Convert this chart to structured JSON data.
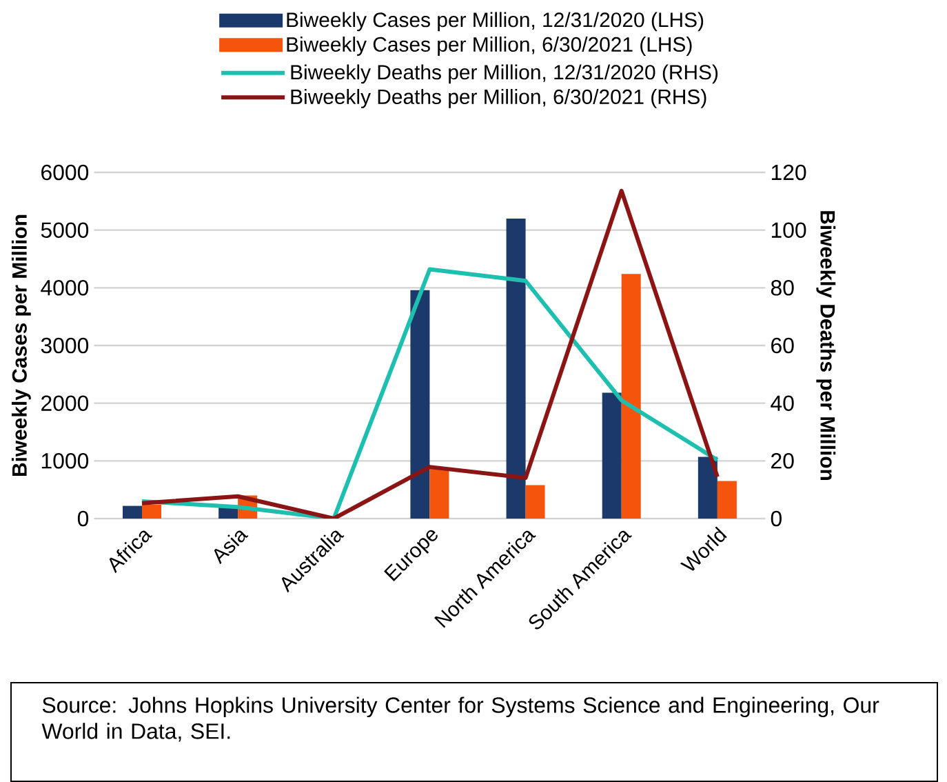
{
  "chart_data": {
    "type": "bar",
    "categories": [
      "Africa",
      "Asia",
      "Australia",
      "Europe",
      "North America",
      "South America",
      "World"
    ],
    "series": [
      {
        "name": "Biweekly Cases per Million, 12/31/2020 (LHS)",
        "color": "#1b3a6b",
        "values": [
          220,
          220,
          0,
          3960,
          5200,
          2180,
          1070
        ]
      },
      {
        "name": "Biweekly Cases per Million, 6/30/2021 (LHS)",
        "color": "#f4540c",
        "values": [
          240,
          400,
          0,
          860,
          580,
          4240,
          650
        ]
      },
      {
        "name": "Biweekly Deaths per Million, 12/31/2020 (RHS)",
        "type": "line",
        "axis": "y2",
        "color": "#1fbfb0",
        "values": [
          6,
          4,
          0,
          86.4,
          82.4,
          41,
          20.3
        ]
      },
      {
        "name": "Biweekly Deaths per Million, 6/30/2021 (RHS)",
        "type": "line",
        "axis": "y2",
        "color": "#8b1414",
        "values": [
          5.3,
          7.7,
          0,
          17.9,
          14.1,
          113.6,
          14.5
        ]
      }
    ],
    "ylabel": "Biweekly Cases per Million",
    "y2label": "Biweekly Deaths per Million",
    "ylim": [
      0,
      6000
    ],
    "yticks": [
      0,
      1000,
      2000,
      3000,
      4000,
      5000,
      6000
    ],
    "y2lim": [
      0,
      120
    ],
    "y2ticks": [
      0,
      20,
      40,
      60,
      80,
      100,
      120
    ],
    "grid": "y",
    "legend": "top",
    "annotations": [
      "Source: Johns Hopkins University Center for Systems Science and Engineering, Our World in Data, SEI."
    ]
  }
}
